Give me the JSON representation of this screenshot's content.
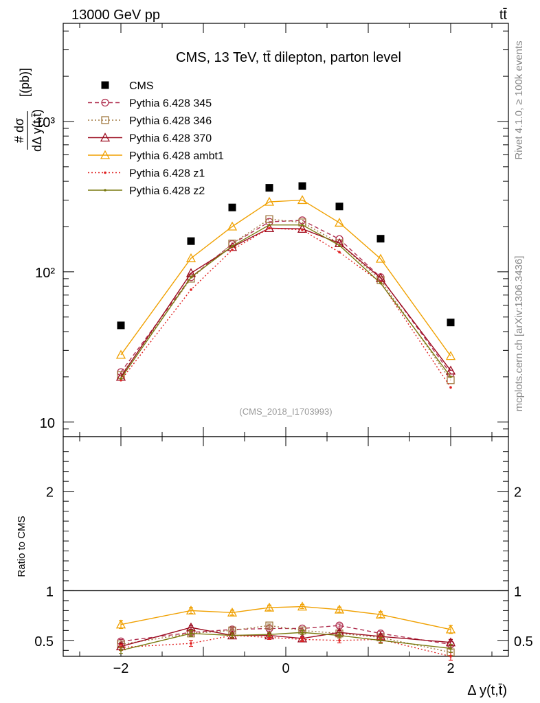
{
  "header": {
    "energy_label": "13000 GeV pp",
    "process_label": "tt̄"
  },
  "side_labels": {
    "rivet": "Rivet 4.1.0, ≥ 100k events",
    "source": "mcplots.cern.ch [arXiv:1306.3436]"
  },
  "chart_data": [
    {
      "type": "line",
      "panel": "main",
      "title": "CMS, 13 TeV, tt̄ dilepton, parton level",
      "analysis_id": "(CMS_2018_I1703993)",
      "yscale": "log",
      "xlim": [
        -2.7,
        2.7
      ],
      "ylim": [
        8,
        4500
      ],
      "xlabel": "Δ y(t,t̄)",
      "ylabel_num": "# dσ",
      "ylabel_den": "dΔ y(t,t̄)",
      "ylabel_unit": "[(pb)]",
      "y_tick_labels": [
        "10",
        "10²",
        "10³"
      ],
      "y_ticks": [
        10,
        100,
        1000
      ],
      "x": [
        -2.0,
        -1.15,
        -0.65,
        -0.2,
        0.2,
        0.65,
        1.15,
        2.0
      ],
      "series": [
        {
          "name": "CMS",
          "color": "#000000",
          "style": "data",
          "values": [
            44,
            160,
            268,
            362,
            372,
            272,
            166,
            46
          ]
        },
        {
          "name": "Pythia 6.428 345",
          "color": "#b03050",
          "style": "dashed",
          "marker": "circle",
          "values": [
            21.5,
            92,
            153,
            215,
            220,
            165,
            92,
            21
          ]
        },
        {
          "name": "Pythia 6.428 346",
          "color": "#a07840",
          "style": "dotted",
          "marker": "square",
          "values": [
            20.5,
            90,
            154,
            224,
            213,
            155,
            88,
            19
          ]
        },
        {
          "name": "Pythia 6.428 370",
          "color": "#9b0a1e",
          "style": "solid",
          "marker": "triangle",
          "values": [
            20,
            98,
            146,
            195,
            193,
            155,
            91,
            22
          ]
        },
        {
          "name": "Pythia 6.428 ambt1",
          "color": "#f0a000",
          "style": "solid",
          "marker": "triangle",
          "values": [
            28,
            123,
            200,
            292,
            300,
            212,
            122,
            27.5
          ]
        },
        {
          "name": "Pythia 6.428 z1",
          "color": "#e02020",
          "style": "dotted",
          "marker": "dot",
          "values": [
            19,
            76,
            140,
            195,
            190,
            135,
            85,
            17
          ]
        },
        {
          "name": "Pythia 6.428 z2",
          "color": "#7a7a10",
          "style": "solid",
          "marker": "dot",
          "values": [
            19.5,
            92,
            148,
            205,
            205,
            150,
            84,
            20
          ]
        }
      ]
    },
    {
      "type": "line",
      "panel": "ratio",
      "ylabel": "Ratio to CMS",
      "xlabel": "Δ y(t,t̄)",
      "ylim": [
        0.34,
        2.55
      ],
      "xlim": [
        -2.7,
        2.7
      ],
      "x_tick_labels": [
        "−2",
        "0",
        "2"
      ],
      "x_ticks": [
        -2,
        0,
        2
      ],
      "y_tick_labels": [
        "0.5",
        "1",
        "2"
      ],
      "y_ticks": [
        0.5,
        1,
        2
      ],
      "reference": 1,
      "x": [
        -2.0,
        -1.15,
        -0.65,
        -0.2,
        0.2,
        0.65,
        1.15,
        2.0
      ],
      "series": [
        {
          "name": "Pythia 6.428 345",
          "color": "#b03050",
          "style": "dashed",
          "marker": "circle",
          "values": [
            0.49,
            0.58,
            0.61,
            0.62,
            0.62,
            0.65,
            0.57,
            0.46
          ],
          "errors": [
            0.02,
            0.02,
            0.015,
            0.015,
            0.015,
            0.015,
            0.02,
            0.03
          ]
        },
        {
          "name": "Pythia 6.428 346",
          "color": "#a07840",
          "style": "dotted",
          "marker": "square",
          "values": [
            0.46,
            0.57,
            0.6,
            0.65,
            0.6,
            0.57,
            0.53,
            0.38
          ],
          "errors": [
            0.02,
            0.02,
            0.015,
            0.015,
            0.015,
            0.015,
            0.02,
            0.03
          ]
        },
        {
          "name": "Pythia 6.428 370",
          "color": "#9b0a1e",
          "style": "solid",
          "marker": "triangle",
          "values": [
            0.44,
            0.63,
            0.55,
            0.55,
            0.52,
            0.58,
            0.54,
            0.48
          ],
          "errors": [
            0.03,
            0.02,
            0.02,
            0.02,
            0.02,
            0.02,
            0.02,
            0.03
          ]
        },
        {
          "name": "Pythia 6.428 ambt1",
          "color": "#f0a000",
          "style": "solid",
          "marker": "triangle",
          "values": [
            0.66,
            0.8,
            0.78,
            0.83,
            0.84,
            0.81,
            0.76,
            0.61
          ],
          "errors": [
            0.04,
            0.03,
            0.025,
            0.025,
            0.02,
            0.025,
            0.03,
            0.04
          ]
        },
        {
          "name": "Pythia 6.428 z1",
          "color": "#e02020",
          "style": "dotted",
          "marker": "dot",
          "values": [
            0.43,
            0.47,
            0.55,
            0.53,
            0.51,
            0.5,
            0.51,
            0.34
          ],
          "errors": [
            0.03,
            0.03,
            0.025,
            0.02,
            0.02,
            0.025,
            0.03,
            0.04
          ]
        },
        {
          "name": "Pythia 6.428 z2",
          "color": "#7a7a10",
          "style": "solid",
          "marker": "dot",
          "values": [
            0.4,
            0.57,
            0.55,
            0.56,
            0.58,
            0.55,
            0.5,
            0.42
          ],
          "errors": [
            0.03,
            0.03,
            0.025,
            0.02,
            0.02,
            0.025,
            0.03,
            0.04
          ]
        }
      ]
    }
  ]
}
